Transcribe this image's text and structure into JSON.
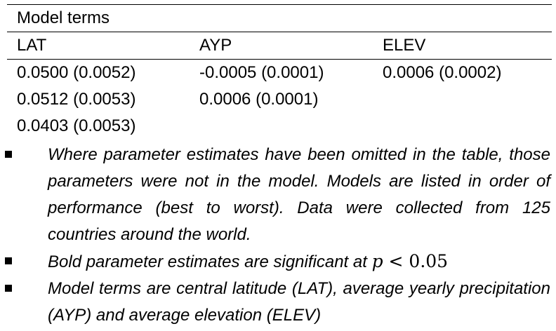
{
  "table": {
    "title": "Model terms",
    "columns": [
      "LAT",
      "AYP",
      "ELEV"
    ],
    "rows": [
      [
        "0.0500 (0.0052)",
        "-0.0005 (0.0001)",
        "0.0006 (0.0002)"
      ],
      [
        "0.0512 (0.0053)",
        "0.0006 (0.0001)",
        ""
      ],
      [
        "0.0403 (0.0053)",
        "",
        ""
      ]
    ]
  },
  "notes": {
    "note1": "Where parameter estimates have been omitted in the table, those parameters were not in the model. Models are listed in order of performance (best to worst). Data were collected from 125 countries around the world.",
    "note2_prefix": "Bold parameter estimates are significant at ",
    "note2_math_var": "p",
    "note2_math_rest": " < 0.05",
    "note3": "Model terms are central latitude (LAT), average yearly precipitation (AYP) and average elevation (ELEV)"
  }
}
